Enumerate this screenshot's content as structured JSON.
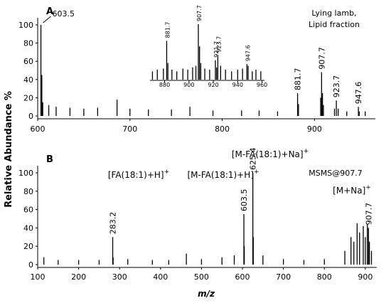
{
  "y_label": "Relative Abundance %",
  "x_label": "m/z",
  "chart_data": [
    {
      "type": "stick",
      "panel": "A",
      "note": [
        "Lying lamb,",
        "Lipid fraction"
      ],
      "xlim": [
        600,
        966
      ],
      "ylim": [
        0,
        100
      ],
      "xticks": [
        600,
        700,
        800,
        900
      ],
      "yticks": [
        0,
        20,
        40,
        60,
        80,
        100
      ],
      "color": "#000000",
      "labeled_peaks": {
        "x": [
          603.5,
          881.7,
          907.7,
          923.7,
          947.6
        ],
        "values": [
          100,
          25,
          48,
          17,
          10
        ]
      },
      "peaks": {
        "x": [
          604.5,
          605.5,
          612,
          620,
          635,
          650,
          665,
          686,
          700,
          720,
          745,
          765,
          790,
          821,
          840,
          860,
          882.7,
          906.7,
          908.7,
          909.7,
          921.7,
          925.7,
          935,
          948.6,
          955
        ],
        "values": [
          45,
          15,
          12,
          10,
          9,
          8,
          9,
          18,
          8,
          7,
          7,
          10,
          6,
          6,
          6,
          5,
          13,
          20,
          25,
          12,
          8,
          8,
          5,
          5,
          5
        ]
      }
    },
    {
      "type": "stick",
      "panel": "inset",
      "xlim": [
        868,
        962
      ],
      "ylim": [
        0,
        100
      ],
      "xticks": [
        880,
        900,
        920,
        940,
        960
      ],
      "color": "#000000",
      "labeled_peaks": {
        "x": [
          881.7,
          907.7,
          921.7,
          923.7,
          947.6
        ],
        "values": [
          70,
          100,
          35,
          44,
          28
        ]
      },
      "peaks": {
        "x": [
          870,
          874,
          879,
          882.7,
          886,
          890,
          895,
          899,
          903,
          905.7,
          908.7,
          909.7,
          913,
          917,
          922.7,
          926,
          930,
          935,
          940,
          944,
          948.6,
          952,
          955,
          959
        ],
        "values": [
          15,
          18,
          20,
          30,
          18,
          15,
          20,
          18,
          22,
          25,
          60,
          30,
          20,
          18,
          22,
          25,
          18,
          15,
          18,
          20,
          25,
          15,
          18,
          15
        ]
      }
    },
    {
      "type": "stick",
      "panel": "B",
      "note": [
        "MSMS@907.7"
      ],
      "xlim": [
        100,
        928
      ],
      "ylim": [
        0,
        100
      ],
      "xticks": [
        100,
        200,
        300,
        400,
        500,
        600,
        700,
        800,
        900
      ],
      "yticks": [
        0,
        20,
        40,
        60,
        80,
        100
      ],
      "color": "#000000",
      "annotations": [
        {
          "text": "[FA(18:1)+H]",
          "charge": "+"
        },
        {
          "text": "[M-FA(18:1)+H]",
          "charge": "+"
        },
        {
          "text": "[M-FA(18:1)+Na]",
          "charge": "+"
        },
        {
          "text": "[M+Na]",
          "charge": "+"
        }
      ],
      "labeled_peaks": {
        "x": [
          283.2,
          603.5,
          625.4,
          907.7
        ],
        "values": [
          30,
          55,
          100,
          40
        ]
      },
      "peaks": {
        "x": [
          115,
          150,
          200,
          250,
          284.2,
          320,
          380,
          420,
          463,
          500,
          550,
          580,
          604.5,
          626.4,
          650,
          700,
          750,
          800,
          850,
          865,
          872,
          880,
          886,
          895,
          900,
          905,
          910,
          915
        ],
        "values": [
          8,
          5,
          5,
          5,
          8,
          6,
          5,
          5,
          12,
          6,
          8,
          10,
          20,
          30,
          10,
          6,
          5,
          6,
          15,
          30,
          25,
          45,
          35,
          42,
          30,
          44,
          25,
          15
        ]
      }
    }
  ]
}
